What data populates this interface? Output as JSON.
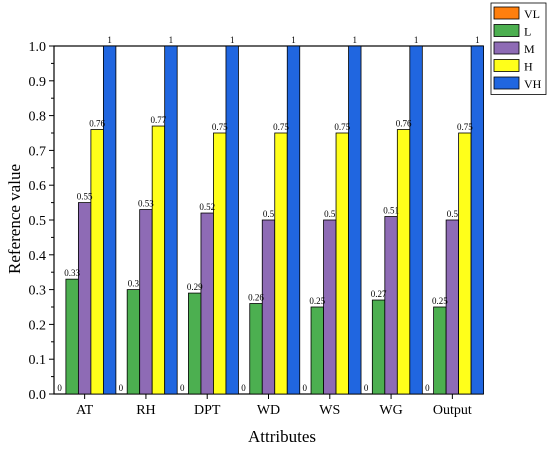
{
  "chart_data": {
    "type": "bar",
    "xlabel": "Attributes",
    "ylabel": "Reference value",
    "ylim": [
      0,
      1.0
    ],
    "yticks": [
      "0.0",
      "0.1",
      "0.2",
      "0.3",
      "0.4",
      "0.5",
      "0.6",
      "0.7",
      "0.8",
      "0.9",
      "1.0"
    ],
    "categories": [
      "AT",
      "RH",
      "DPT",
      "WD",
      "WS",
      "WG",
      "Output"
    ],
    "series": [
      {
        "name": "VL",
        "color": "#ff7f0e",
        "values": [
          0,
          0,
          0,
          0,
          0,
          0,
          0
        ],
        "labels": [
          "0",
          "0",
          "0",
          "0",
          "0",
          "0",
          "0"
        ]
      },
      {
        "name": "L",
        "color": "#4caf50",
        "values": [
          0.33,
          0.3,
          0.29,
          0.26,
          0.25,
          0.27,
          0.25
        ],
        "labels": [
          "0.33",
          "0.3",
          "0.29",
          "0.26",
          "0.25",
          "0.27",
          "0.25"
        ]
      },
      {
        "name": "M",
        "color": "#8e6bb5",
        "values": [
          0.55,
          0.53,
          0.52,
          0.5,
          0.5,
          0.51,
          0.5
        ],
        "labels": [
          "0.55",
          "0.53",
          "0.52",
          "0.5",
          "0.5",
          "0.51",
          "0.5"
        ]
      },
      {
        "name": "H",
        "color": "#ffff1a",
        "values": [
          0.76,
          0.77,
          0.75,
          0.75,
          0.75,
          0.76,
          0.75
        ],
        "labels": [
          "0.76",
          "0.77",
          "0.75",
          "0.75",
          "0.75",
          "0.76",
          "0.75"
        ]
      },
      {
        "name": "VH",
        "color": "#2066e0",
        "values": [
          1,
          1,
          1,
          1,
          1,
          1,
          1
        ],
        "labels": [
          "1",
          "1",
          "1",
          "1",
          "1",
          "1",
          "1"
        ]
      }
    ],
    "legend_position": "top-right",
    "grid": false
  }
}
